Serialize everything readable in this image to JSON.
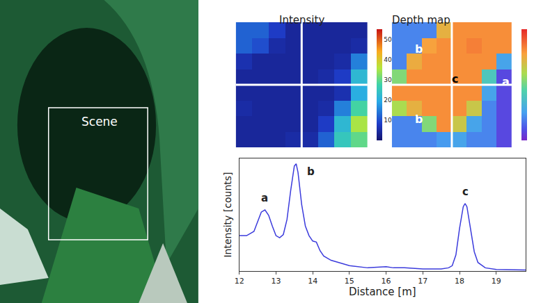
{
  "scene": {
    "label": "Scene"
  },
  "chart_data": [
    {
      "type": "heatmap",
      "title": "Intensity",
      "cells": [
        [
          12,
          12,
          8,
          4,
          4,
          4,
          4,
          4
        ],
        [
          12,
          10,
          5,
          4,
          4,
          4,
          4,
          5
        ],
        [
          6,
          4,
          4,
          4,
          4,
          4,
          5,
          15
        ],
        [
          4,
          4,
          4,
          4,
          4,
          5,
          8,
          22
        ],
        [
          4,
          4,
          4,
          4,
          4,
          4,
          6,
          20
        ],
        [
          5,
          4,
          4,
          4,
          4,
          5,
          15,
          28
        ],
        [
          4,
          4,
          4,
          4,
          4,
          8,
          22,
          35
        ],
        [
          4,
          4,
          4,
          5,
          5,
          12,
          25,
          30
        ]
      ],
      "zlim": [
        0,
        55
      ],
      "zticks": [
        10,
        20,
        30,
        40,
        50
      ]
    },
    {
      "type": "heatmap",
      "title": "Depth map",
      "tick_labels": false,
      "cells": [
        [
          13.5,
          13.5,
          13.5,
          17.5,
          18.1,
          18.1,
          18.1,
          18.1
        ],
        [
          13.5,
          13.5,
          17.8,
          18.1,
          18.1,
          18.3,
          18.1,
          18.1
        ],
        [
          13.5,
          17.6,
          18.1,
          18.1,
          18.1,
          18.1,
          18.1,
          14
        ],
        [
          16,
          18.1,
          18.1,
          18.1,
          18.1,
          18.1,
          15,
          12.6
        ],
        [
          18.1,
          18.1,
          18.1,
          18.1,
          18.1,
          18.1,
          14,
          12.6
        ],
        [
          16.5,
          17.5,
          18.1,
          18.1,
          18.1,
          17,
          13.5,
          12.6
        ],
        [
          13.5,
          13.5,
          16,
          18.1,
          17,
          14,
          13.5,
          12.6
        ],
        [
          13.5,
          13.5,
          13.5,
          13.8,
          14,
          13.5,
          13.5,
          12.6
        ]
      ],
      "zlim": [
        12,
        19.5
      ],
      "annotations": [
        {
          "text": "b",
          "x": 1.3,
          "y": 1.2,
          "color": "#ffffff"
        },
        {
          "text": "c",
          "x": 3.7,
          "y": 3.1,
          "color": "#000000"
        },
        {
          "text": "a",
          "x": 7.1,
          "y": 3.3,
          "color": "#ffffff"
        },
        {
          "text": "b",
          "x": 1.3,
          "y": 5.7,
          "color": "#ffffff"
        }
      ]
    },
    {
      "type": "line",
      "xlabel": "Distance [m]",
      "ylabel": "Intensity [counts]",
      "color": "#3b3bdc",
      "x": [
        12.0,
        12.2,
        12.4,
        12.5,
        12.6,
        12.7,
        12.8,
        12.9,
        13.0,
        13.1,
        13.2,
        13.3,
        13.4,
        13.5,
        13.55,
        13.6,
        13.7,
        13.8,
        13.9,
        14.0,
        14.1,
        14.2,
        14.3,
        14.5,
        14.8,
        15.0,
        15.5,
        16.0,
        16.2,
        16.5,
        17.0,
        17.5,
        17.7,
        17.8,
        17.9,
        18.0,
        18.1,
        18.15,
        18.2,
        18.3,
        18.4,
        18.5,
        18.7,
        19.0,
        19.5,
        19.8
      ],
      "values": [
        33,
        33,
        37,
        46,
        55,
        57,
        52,
        42,
        33,
        31,
        34,
        48,
        75,
        98,
        100,
        92,
        62,
        42,
        33,
        28,
        27,
        19,
        14,
        10,
        7,
        5,
        3,
        4,
        3,
        3,
        2,
        2,
        3,
        5,
        15,
        40,
        60,
        63,
        60,
        38,
        18,
        8,
        3,
        1.5,
        1,
        1
      ],
      "xlim": [
        12,
        19.8
      ],
      "ylim": [
        0,
        105
      ],
      "xticks": [
        12,
        13,
        14,
        15,
        16,
        17,
        18,
        19
      ],
      "tick_labels": "x",
      "annotations": [
        {
          "text": "a",
          "x": 12.68,
          "y": 68
        },
        {
          "text": "b",
          "x": 13.95,
          "y": 93
        },
        {
          "text": "c",
          "x": 18.15,
          "y": 74
        }
      ]
    }
  ]
}
